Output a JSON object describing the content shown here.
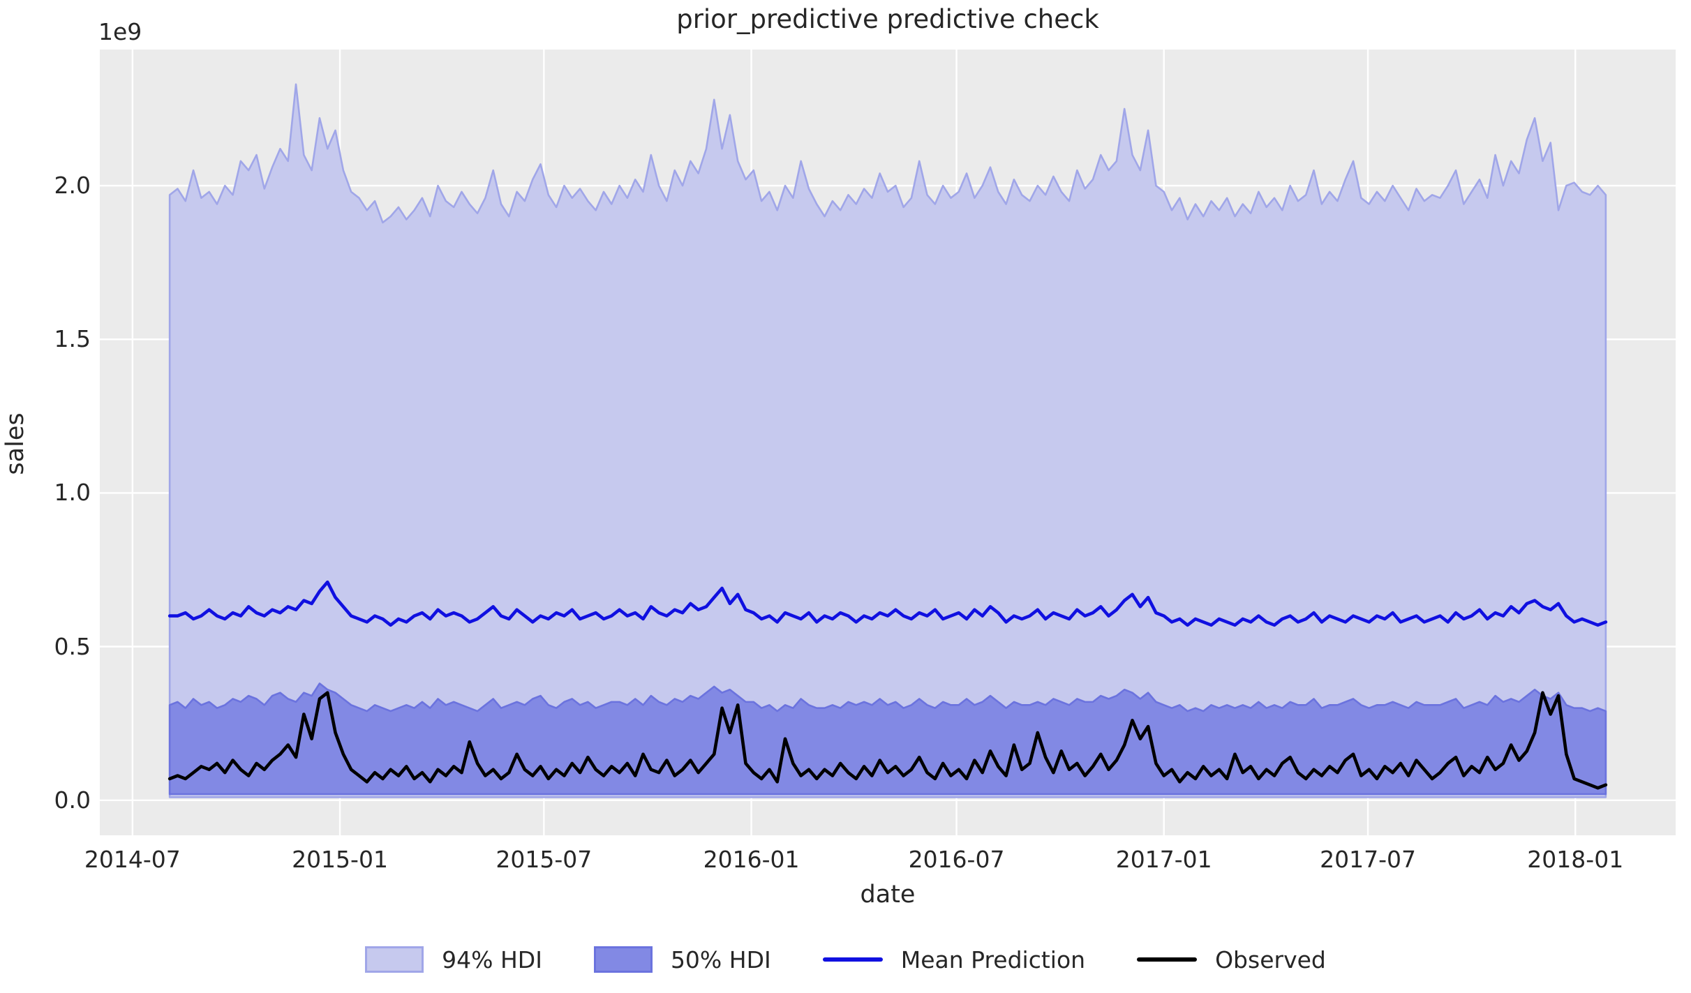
{
  "figure": {
    "title": "prior_predictive predictive check",
    "background_color": "#ffffff",
    "plot_background_color": "#ebebeb",
    "grid_color": "#ffffff",
    "text_color": "#262626"
  },
  "chart_data": {
    "type": "area",
    "title": "prior_predictive predictive check",
    "xlabel": "date",
    "ylabel": "sales",
    "y_offset_label": "1e9",
    "units": "1e9",
    "grid": true,
    "legend_position": "bottom-center",
    "y_ticks": [
      0.0,
      0.5,
      1.0,
      1.5,
      2.0
    ],
    "y_tick_labels": [
      "0.0",
      "0.5",
      "1.0",
      "1.5",
      "2.0"
    ],
    "ylim": [
      -0.114,
      2.443
    ],
    "x_tick_labels": [
      "2014-07",
      "2015-01",
      "2015-07",
      "2016-01",
      "2016-07",
      "2017-01",
      "2017-07",
      "2018-01"
    ],
    "x_tick_dates": [
      "2014-07-01",
      "2015-01-01",
      "2015-07-01",
      "2016-01-01",
      "2016-07-01",
      "2017-01-01",
      "2017-07-01",
      "2018-01-01"
    ],
    "xlim_dates": [
      "2014-06-02",
      "2018-03-31"
    ],
    "x_start_date": "2014-08-03",
    "x_step_days": 7,
    "legend": {
      "items": [
        {
          "label": "94% HDI",
          "swatch": "patch",
          "fill": "#c6c9ee",
          "edge": "#a0a6e8"
        },
        {
          "label": "50% HDI",
          "swatch": "patch",
          "fill": "#8289e4",
          "edge": "#6b73de"
        },
        {
          "label": "Mean Prediction",
          "swatch": "line",
          "color": "#1010e0"
        },
        {
          "label": "Observed",
          "swatch": "line",
          "color": "#000000"
        }
      ]
    },
    "series": [
      {
        "name": "94% HDI",
        "type": "band",
        "fill": "#c6c9ee",
        "edge": "#a0a6e8",
        "lower_constant": 0.01,
        "upper": [
          1.97,
          1.99,
          1.95,
          2.05,
          1.96,
          1.98,
          1.94,
          2.0,
          1.97,
          2.08,
          2.05,
          2.1,
          1.99,
          2.06,
          2.12,
          2.08,
          2.33,
          2.1,
          2.05,
          2.22,
          2.12,
          2.18,
          2.05,
          1.98,
          1.96,
          1.92,
          1.95,
          1.88,
          1.9,
          1.93,
          1.89,
          1.92,
          1.96,
          1.9,
          2.0,
          1.95,
          1.93,
          1.98,
          1.94,
          1.91,
          1.96,
          2.05,
          1.94,
          1.9,
          1.98,
          1.95,
          2.02,
          2.07,
          1.97,
          1.93,
          2.0,
          1.96,
          1.99,
          1.95,
          1.92,
          1.98,
          1.94,
          2.0,
          1.96,
          2.02,
          1.98,
          2.1,
          2.0,
          1.95,
          2.05,
          2.0,
          2.08,
          2.04,
          2.12,
          2.28,
          2.12,
          2.23,
          2.08,
          2.02,
          2.05,
          1.95,
          1.98,
          1.92,
          2.0,
          1.96,
          2.08,
          1.99,
          1.94,
          1.9,
          1.95,
          1.92,
          1.97,
          1.94,
          1.99,
          1.96,
          2.04,
          1.98,
          2.0,
          1.93,
          1.96,
          2.08,
          1.97,
          1.94,
          2.0,
          1.96,
          1.98,
          2.04,
          1.96,
          2.0,
          2.06,
          1.98,
          1.94,
          2.02,
          1.97,
          1.95,
          2.0,
          1.97,
          2.03,
          1.98,
          1.95,
          2.05,
          1.99,
          2.02,
          2.1,
          2.05,
          2.08,
          2.25,
          2.1,
          2.05,
          2.18,
          2.0,
          1.98,
          1.92,
          1.96,
          1.89,
          1.94,
          1.9,
          1.95,
          1.92,
          1.96,
          1.9,
          1.94,
          1.91,
          1.98,
          1.93,
          1.96,
          1.92,
          2.0,
          1.95,
          1.97,
          2.05,
          1.94,
          1.98,
          1.95,
          2.02,
          2.08,
          1.96,
          1.94,
          1.98,
          1.95,
          2.0,
          1.96,
          1.92,
          1.99,
          1.95,
          1.97,
          1.96,
          2.0,
          2.05,
          1.94,
          1.98,
          2.02,
          1.96,
          2.1,
          2.0,
          2.08,
          2.04,
          2.15,
          2.22,
          2.08,
          2.14,
          1.92,
          2.0,
          2.01,
          1.98,
          1.97,
          2.0,
          1.97
        ]
      },
      {
        "name": "50% HDI",
        "type": "band",
        "fill": "#8289e4",
        "edge": "#6b73de",
        "lower_constant": 0.02,
        "upper": [
          0.31,
          0.32,
          0.3,
          0.33,
          0.31,
          0.32,
          0.3,
          0.31,
          0.33,
          0.32,
          0.34,
          0.33,
          0.31,
          0.34,
          0.35,
          0.33,
          0.32,
          0.35,
          0.34,
          0.38,
          0.36,
          0.35,
          0.33,
          0.31,
          0.3,
          0.29,
          0.31,
          0.3,
          0.29,
          0.3,
          0.31,
          0.3,
          0.32,
          0.3,
          0.33,
          0.31,
          0.32,
          0.31,
          0.3,
          0.29,
          0.31,
          0.33,
          0.3,
          0.31,
          0.32,
          0.31,
          0.33,
          0.34,
          0.31,
          0.3,
          0.32,
          0.33,
          0.31,
          0.32,
          0.3,
          0.31,
          0.32,
          0.32,
          0.31,
          0.33,
          0.31,
          0.34,
          0.32,
          0.31,
          0.33,
          0.32,
          0.34,
          0.33,
          0.35,
          0.37,
          0.35,
          0.36,
          0.34,
          0.32,
          0.32,
          0.3,
          0.31,
          0.29,
          0.31,
          0.3,
          0.33,
          0.31,
          0.3,
          0.3,
          0.31,
          0.3,
          0.32,
          0.31,
          0.32,
          0.31,
          0.33,
          0.31,
          0.32,
          0.3,
          0.31,
          0.33,
          0.31,
          0.3,
          0.32,
          0.31,
          0.31,
          0.33,
          0.31,
          0.32,
          0.34,
          0.32,
          0.3,
          0.32,
          0.31,
          0.31,
          0.32,
          0.31,
          0.33,
          0.32,
          0.31,
          0.33,
          0.32,
          0.32,
          0.34,
          0.33,
          0.34,
          0.36,
          0.35,
          0.33,
          0.35,
          0.32,
          0.31,
          0.3,
          0.31,
          0.29,
          0.3,
          0.29,
          0.31,
          0.3,
          0.31,
          0.3,
          0.31,
          0.3,
          0.32,
          0.3,
          0.31,
          0.3,
          0.32,
          0.31,
          0.31,
          0.33,
          0.3,
          0.31,
          0.31,
          0.32,
          0.33,
          0.31,
          0.3,
          0.31,
          0.31,
          0.32,
          0.31,
          0.3,
          0.32,
          0.31,
          0.31,
          0.31,
          0.32,
          0.33,
          0.3,
          0.31,
          0.32,
          0.31,
          0.34,
          0.32,
          0.33,
          0.32,
          0.34,
          0.36,
          0.34,
          0.33,
          0.35,
          0.31,
          0.3,
          0.3,
          0.29,
          0.3,
          0.29
        ]
      },
      {
        "name": "Mean Prediction",
        "type": "line",
        "color": "#1010e0",
        "values": [
          0.6,
          0.6,
          0.61,
          0.59,
          0.6,
          0.62,
          0.6,
          0.59,
          0.61,
          0.6,
          0.63,
          0.61,
          0.6,
          0.62,
          0.61,
          0.63,
          0.62,
          0.65,
          0.64,
          0.68,
          0.71,
          0.66,
          0.63,
          0.6,
          0.59,
          0.58,
          0.6,
          0.59,
          0.57,
          0.59,
          0.58,
          0.6,
          0.61,
          0.59,
          0.62,
          0.6,
          0.61,
          0.6,
          0.58,
          0.59,
          0.61,
          0.63,
          0.6,
          0.59,
          0.62,
          0.6,
          0.58,
          0.6,
          0.59,
          0.61,
          0.6,
          0.62,
          0.59,
          0.6,
          0.61,
          0.59,
          0.6,
          0.62,
          0.6,
          0.61,
          0.59,
          0.63,
          0.61,
          0.6,
          0.62,
          0.61,
          0.64,
          0.62,
          0.63,
          0.66,
          0.69,
          0.64,
          0.67,
          0.62,
          0.61,
          0.59,
          0.6,
          0.58,
          0.61,
          0.6,
          0.59,
          0.61,
          0.58,
          0.6,
          0.59,
          0.61,
          0.6,
          0.58,
          0.6,
          0.59,
          0.61,
          0.6,
          0.62,
          0.6,
          0.59,
          0.61,
          0.6,
          0.62,
          0.59,
          0.6,
          0.61,
          0.59,
          0.62,
          0.6,
          0.63,
          0.61,
          0.58,
          0.6,
          0.59,
          0.6,
          0.62,
          0.59,
          0.61,
          0.6,
          0.59,
          0.62,
          0.6,
          0.61,
          0.63,
          0.6,
          0.62,
          0.65,
          0.67,
          0.63,
          0.66,
          0.61,
          0.6,
          0.58,
          0.59,
          0.57,
          0.59,
          0.58,
          0.57,
          0.59,
          0.58,
          0.57,
          0.59,
          0.58,
          0.6,
          0.58,
          0.57,
          0.59,
          0.6,
          0.58,
          0.59,
          0.61,
          0.58,
          0.6,
          0.59,
          0.58,
          0.6,
          0.59,
          0.58,
          0.6,
          0.59,
          0.61,
          0.58,
          0.59,
          0.6,
          0.58,
          0.59,
          0.6,
          0.58,
          0.61,
          0.59,
          0.6,
          0.62,
          0.59,
          0.61,
          0.6,
          0.63,
          0.61,
          0.64,
          0.65,
          0.63,
          0.62,
          0.64,
          0.6,
          0.58,
          0.59,
          0.58,
          0.57,
          0.58
        ]
      },
      {
        "name": "Observed",
        "type": "line",
        "color": "#000000",
        "values": [
          0.07,
          0.08,
          0.07,
          0.09,
          0.11,
          0.1,
          0.12,
          0.09,
          0.13,
          0.1,
          0.08,
          0.12,
          0.1,
          0.13,
          0.15,
          0.18,
          0.14,
          0.28,
          0.2,
          0.33,
          0.35,
          0.22,
          0.15,
          0.1,
          0.08,
          0.06,
          0.09,
          0.07,
          0.1,
          0.08,
          0.11,
          0.07,
          0.09,
          0.06,
          0.1,
          0.08,
          0.11,
          0.09,
          0.19,
          0.12,
          0.08,
          0.1,
          0.07,
          0.09,
          0.15,
          0.1,
          0.08,
          0.11,
          0.07,
          0.1,
          0.08,
          0.12,
          0.09,
          0.14,
          0.1,
          0.08,
          0.11,
          0.09,
          0.12,
          0.08,
          0.15,
          0.1,
          0.09,
          0.13,
          0.08,
          0.1,
          0.13,
          0.09,
          0.12,
          0.15,
          0.3,
          0.22,
          0.31,
          0.12,
          0.09,
          0.07,
          0.1,
          0.06,
          0.2,
          0.12,
          0.08,
          0.1,
          0.07,
          0.1,
          0.08,
          0.12,
          0.09,
          0.07,
          0.11,
          0.08,
          0.13,
          0.09,
          0.11,
          0.08,
          0.1,
          0.14,
          0.09,
          0.07,
          0.12,
          0.08,
          0.1,
          0.07,
          0.13,
          0.09,
          0.16,
          0.11,
          0.08,
          0.18,
          0.1,
          0.12,
          0.22,
          0.14,
          0.09,
          0.16,
          0.1,
          0.12,
          0.08,
          0.11,
          0.15,
          0.1,
          0.13,
          0.18,
          0.26,
          0.2,
          0.24,
          0.12,
          0.08,
          0.1,
          0.06,
          0.09,
          0.07,
          0.11,
          0.08,
          0.1,
          0.07,
          0.15,
          0.09,
          0.11,
          0.07,
          0.1,
          0.08,
          0.12,
          0.14,
          0.09,
          0.07,
          0.1,
          0.08,
          0.11,
          0.09,
          0.13,
          0.15,
          0.08,
          0.1,
          0.07,
          0.11,
          0.09,
          0.12,
          0.08,
          0.13,
          0.1,
          0.07,
          0.09,
          0.12,
          0.14,
          0.08,
          0.11,
          0.09,
          0.14,
          0.1,
          0.12,
          0.18,
          0.13,
          0.16,
          0.22,
          0.35,
          0.28,
          0.34,
          0.15,
          0.07,
          0.06,
          0.05,
          0.04,
          0.05
        ]
      }
    ]
  }
}
